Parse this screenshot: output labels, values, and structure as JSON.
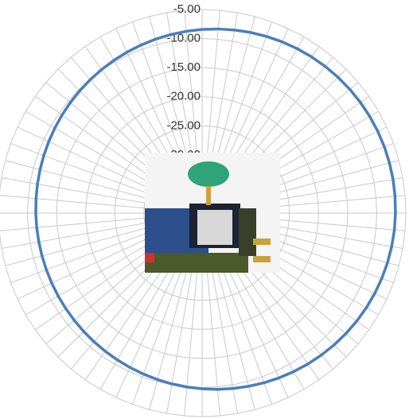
{
  "chart_data": {
    "type": "radar",
    "categories": [
      null,
      null,
      null,
      null,
      null,
      null,
      null,
      null,
      null,
      null,
      null,
      null,
      null,
      null,
      null,
      null,
      null,
      null,
      null,
      null,
      null,
      null,
      null,
      null,
      null,
      null,
      null,
      null,
      null,
      null,
      null,
      null,
      null,
      null,
      null,
      null,
      null,
      null,
      null,
      null,
      null,
      null,
      null,
      null,
      null,
      null,
      null,
      null,
      null,
      null,
      null,
      null,
      null,
      null,
      null,
      null,
      null,
      null,
      null,
      null,
      null,
      null,
      null,
      null,
      null,
      null,
      null,
      null,
      null,
      null,
      null,
      null
    ],
    "values": [
      -8.42,
      -8.22,
      -8.03,
      -7.84,
      -7.67,
      -7.5,
      -7.35,
      -7.21,
      -7.09,
      -6.98,
      -6.88,
      -6.81,
      -6.75,
      -6.71,
      -6.68,
      -6.68,
      -6.69,
      -6.73,
      -6.78,
      -6.84,
      -6.93,
      -7.03,
      -7.15,
      -7.28,
      -7.43,
      -7.59,
      -7.76,
      -7.94,
      -8.13,
      -8.32,
      -8.53,
      -8.73,
      -8.94,
      -9.16,
      -9.37,
      -9.57,
      -9.78,
      -9.98,
      -10.17,
      -10.36,
      -10.53,
      -10.7,
      -10.85,
      -10.99,
      -11.11,
      -11.22,
      -11.32,
      -11.39,
      -11.45,
      -11.49,
      -11.52,
      -11.52,
      -11.51,
      -11.47,
      -11.42,
      -11.36,
      -11.27,
      -11.17,
      -11.05,
      -10.92,
      -10.77,
      -10.61,
      -10.44,
      -10.26,
      -10.07,
      -9.88,
      -9.67,
      -9.47,
      -9.26,
      -9.04,
      -8.83,
      -8.63
    ],
    "color": "#4a7ebb",
    "ylim": [
      -40,
      -5
    ],
    "yticks": [
      {
        "value": -30,
        "label": "-30.00"
      },
      {
        "value": -25,
        "label": "-25.00"
      },
      {
        "value": -20,
        "label": "-20.00"
      },
      {
        "value": -15,
        "label": "-15.00"
      },
      {
        "value": -10,
        "label": "-10.00"
      },
      {
        "value": -5,
        "label": "-5.00"
      }
    ],
    "grid": true
  }
}
